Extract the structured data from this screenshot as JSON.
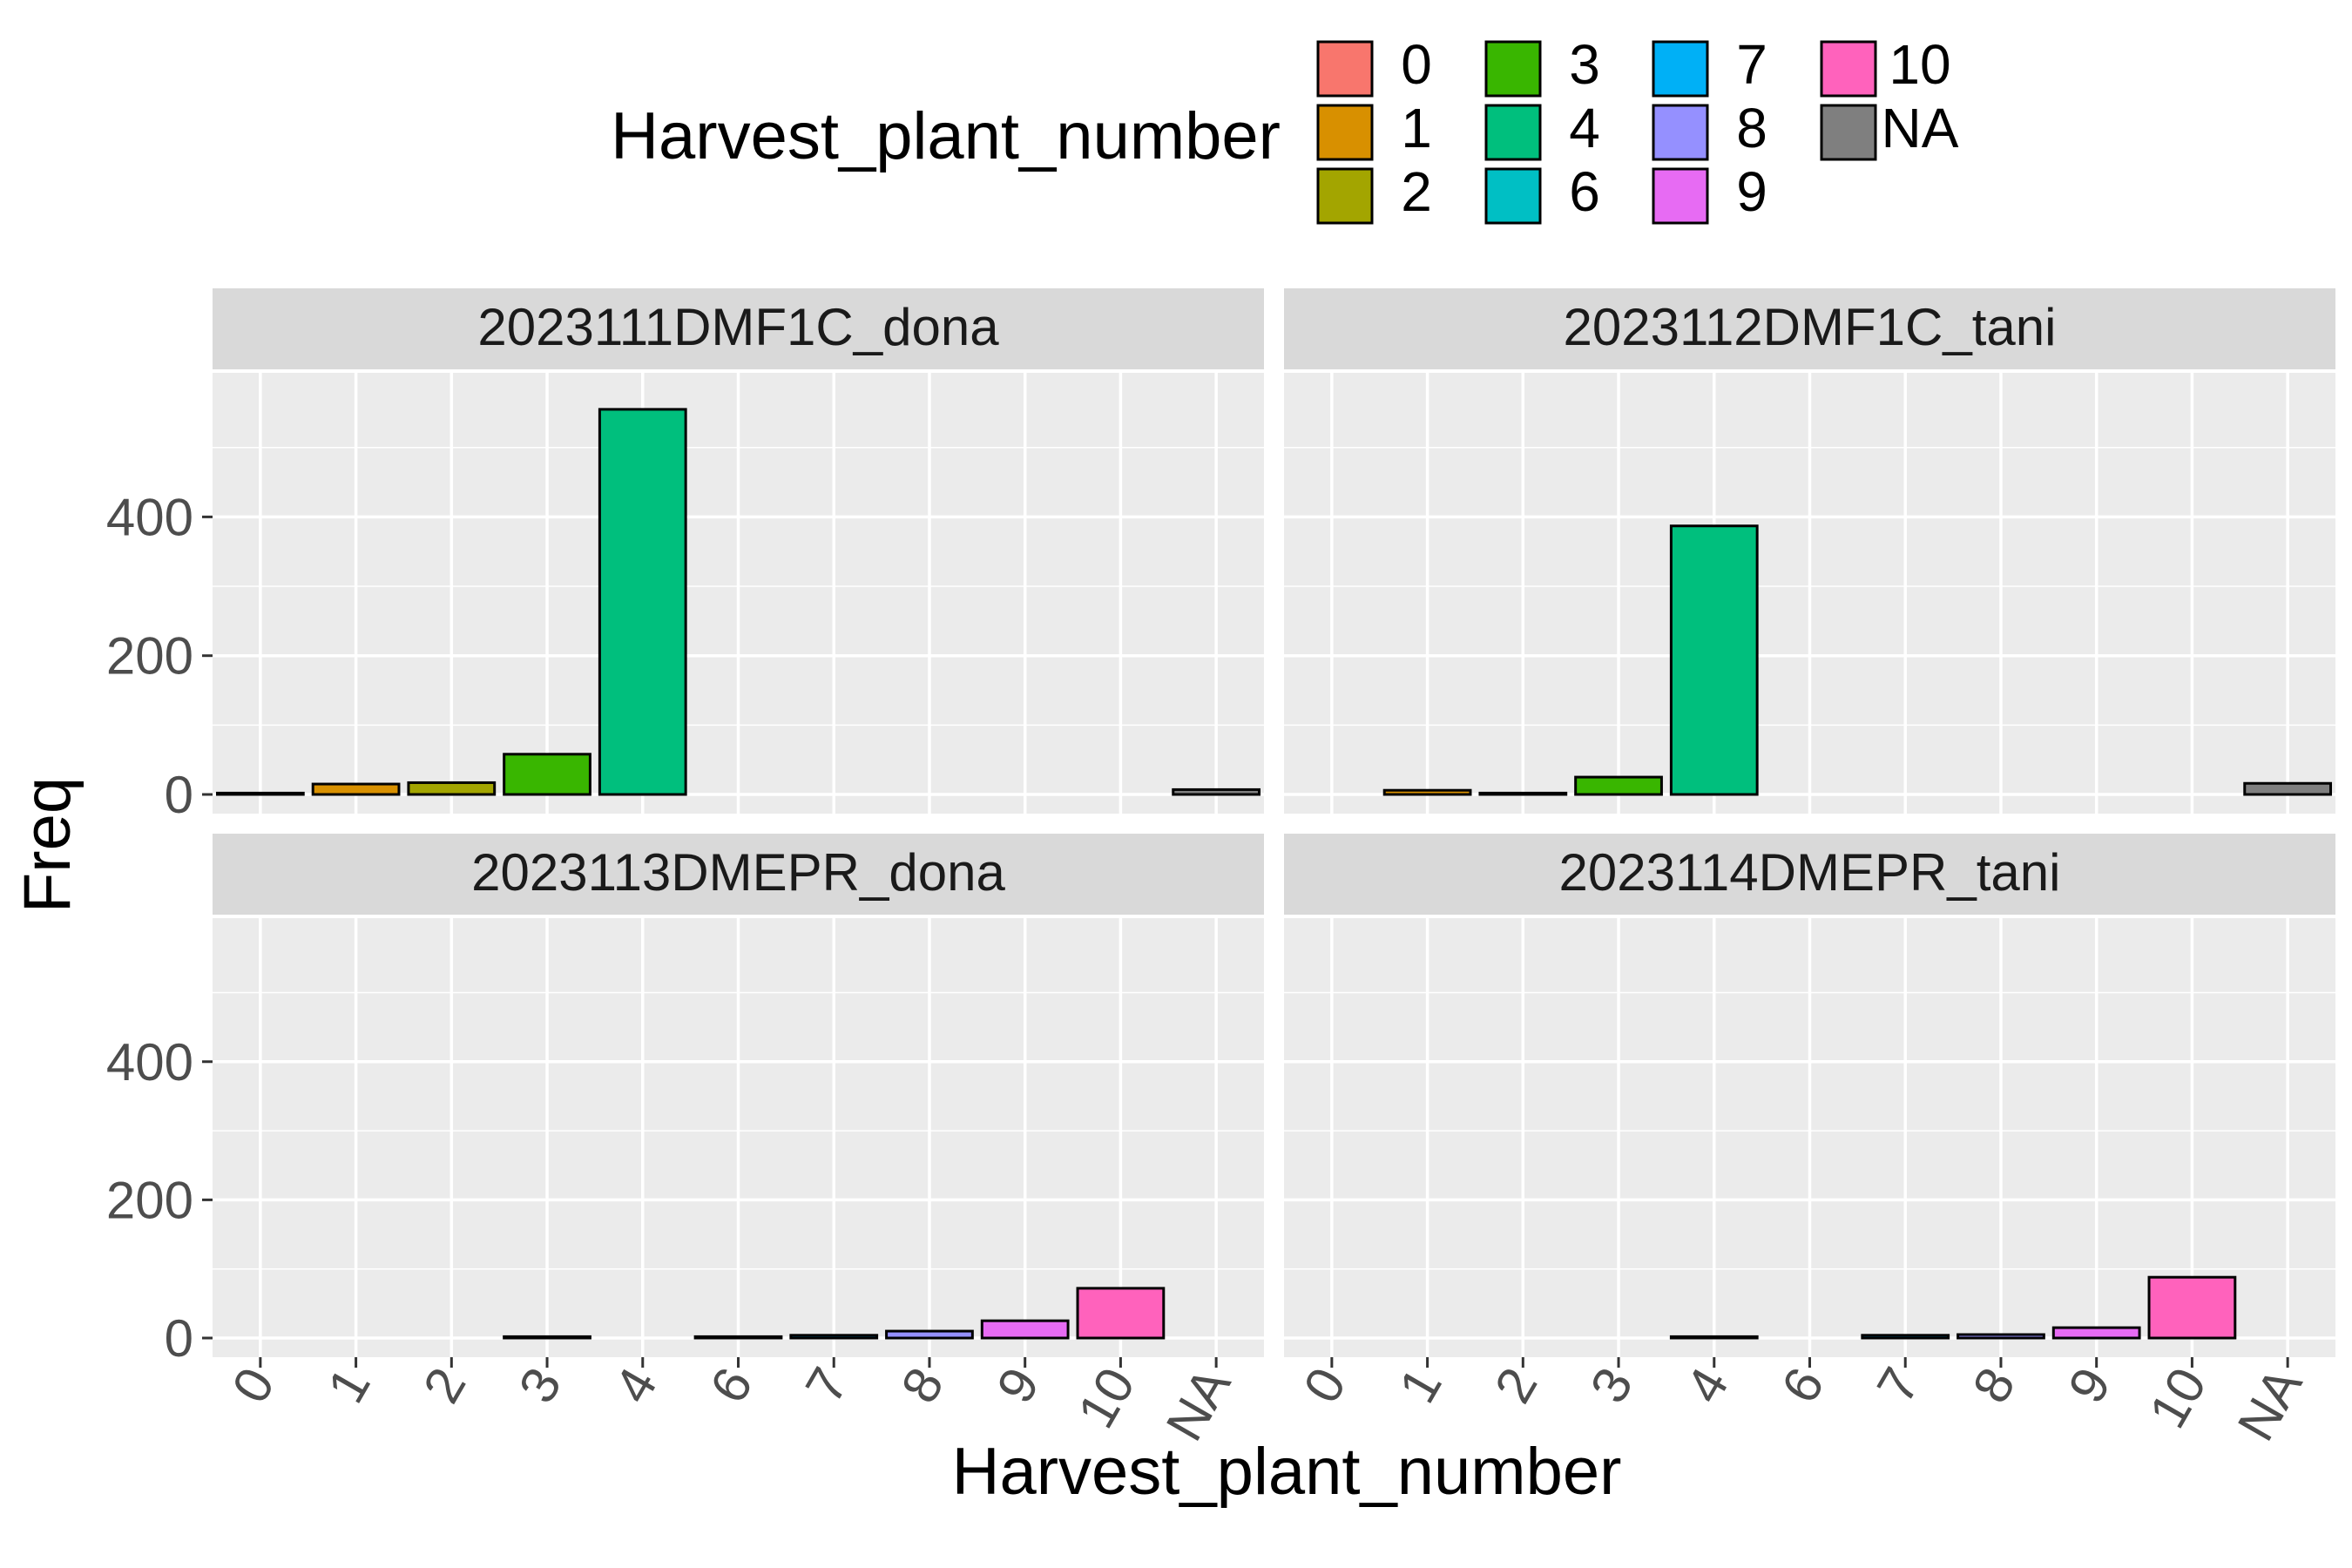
{
  "chart_data": {
    "type": "bar",
    "xlabel": "Harvest_plant_number",
    "ylabel": "Freq",
    "categories": [
      "0",
      "1",
      "2",
      "3",
      "4",
      "6",
      "7",
      "8",
      "9",
      "10",
      "NA"
    ],
    "ylim": [
      0,
      580
    ],
    "yticks": [
      "0",
      "200",
      "400"
    ],
    "grid": true,
    "legend": {
      "title": "Harvest_plant_number",
      "position": "top",
      "entries": [
        {
          "label": "0",
          "color": "#F8766D"
        },
        {
          "label": "1",
          "color": "#D89000"
        },
        {
          "label": "2",
          "color": "#A3A500"
        },
        {
          "label": "3",
          "color": "#39B600"
        },
        {
          "label": "4",
          "color": "#00BF7D"
        },
        {
          "label": "6",
          "color": "#00BFC4"
        },
        {
          "label": "7",
          "color": "#00B0F6"
        },
        {
          "label": "8",
          "color": "#9590FF"
        },
        {
          "label": "9",
          "color": "#E76BF3"
        },
        {
          "label": "10",
          "color": "#FF62BC"
        },
        {
          "label": "NA",
          "color": "#7F7F7F"
        }
      ]
    },
    "panels": [
      {
        "title": "2023111DMF1C_dona",
        "values": [
          2,
          15,
          17,
          58,
          555,
          0,
          0,
          0,
          0,
          0,
          7
        ]
      },
      {
        "title": "2023112DMF1C_tani",
        "values": [
          0,
          6,
          2,
          25,
          387,
          0,
          0,
          0,
          0,
          0,
          16
        ]
      },
      {
        "title": "2023113DMEPR_dona",
        "values": [
          0,
          0,
          0,
          2,
          0,
          2,
          4,
          10,
          25,
          72,
          0
        ]
      },
      {
        "title": "2023114DMEPR_tani",
        "values": [
          0,
          0,
          0,
          0,
          2,
          0,
          4,
          5,
          15,
          88,
          0
        ]
      }
    ]
  }
}
